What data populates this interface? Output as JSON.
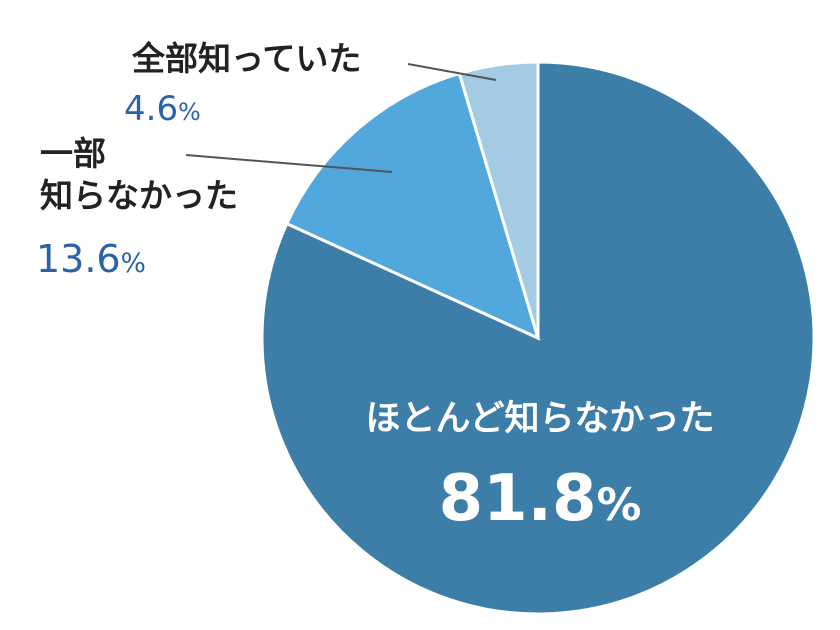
{
  "chart_data": {
    "type": "pie",
    "slices": [
      {
        "label": "ほとんど知らなかった",
        "value": 81.8,
        "display": "81.8",
        "unit": "%",
        "color": "#3d7ea8"
      },
      {
        "label_lines": [
          "一部",
          "知らなかった"
        ],
        "value": 13.6,
        "display": "13.6",
        "unit": "%",
        "color": "#52a8dc"
      },
      {
        "label": "全部知っていた",
        "value": 4.6,
        "display": "4.6",
        "unit": "%",
        "color": "#a3cbe4"
      }
    ]
  }
}
